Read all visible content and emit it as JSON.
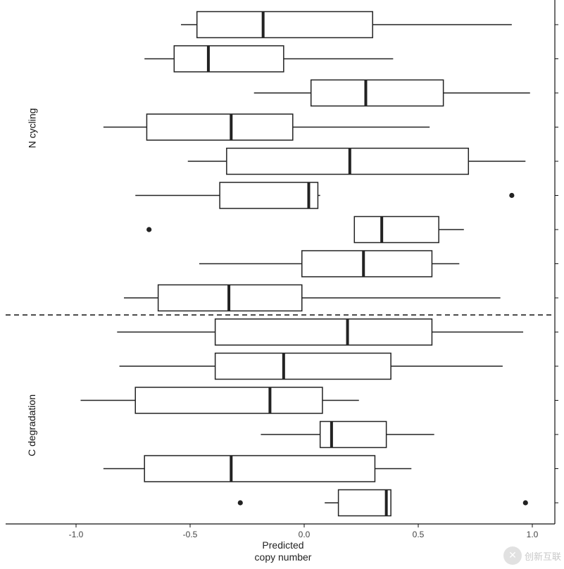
{
  "chart_data": {
    "type": "boxplot",
    "orientation": "horizontal",
    "xlabel_line1": "Predicted",
    "xlabel_line2": "copy number",
    "x_ticks": [
      "-1.0",
      "-0.5",
      "0.0",
      "0.5",
      "1.0"
    ],
    "x_tick_values": [
      -1.0,
      -0.5,
      0.0,
      0.5,
      1.0
    ],
    "xlim": [
      -1.3,
      1.1
    ],
    "group_labels": [
      "N cycling",
      "C degradation"
    ],
    "divider_after_row": 9,
    "grid": false,
    "boxes": [
      {
        "group": "N cycling",
        "whisker_low": -0.54,
        "q1": -0.47,
        "median": -0.18,
        "q3": 0.3,
        "whisker_high": 0.91,
        "outliers": []
      },
      {
        "group": "N cycling",
        "whisker_low": -0.7,
        "q1": -0.57,
        "median": -0.42,
        "q3": -0.09,
        "whisker_high": 0.39,
        "outliers": []
      },
      {
        "group": "N cycling",
        "whisker_low": -0.22,
        "q1": 0.03,
        "median": 0.27,
        "q3": 0.61,
        "whisker_high": 0.99,
        "outliers": []
      },
      {
        "group": "N cycling",
        "whisker_low": -0.88,
        "q1": -0.69,
        "median": -0.32,
        "q3": -0.05,
        "whisker_high": 0.55,
        "outliers": []
      },
      {
        "group": "N cycling",
        "whisker_low": -0.51,
        "q1": -0.34,
        "median": 0.2,
        "q3": 0.72,
        "whisker_high": 0.97,
        "outliers": []
      },
      {
        "group": "N cycling",
        "whisker_low": -0.74,
        "q1": -0.37,
        "median": 0.02,
        "q3": 0.06,
        "whisker_high": 0.07,
        "outliers": [
          0.91
        ]
      },
      {
        "group": "N cycling",
        "whisker_low": 0.22,
        "q1": 0.22,
        "median": 0.34,
        "q3": 0.59,
        "whisker_high": 0.7,
        "outliers": [
          -0.68
        ]
      },
      {
        "group": "N cycling",
        "whisker_low": -0.46,
        "q1": -0.01,
        "median": 0.26,
        "q3": 0.56,
        "whisker_high": 0.68,
        "outliers": []
      },
      {
        "group": "N cycling",
        "whisker_low": -0.79,
        "q1": -0.64,
        "median": -0.33,
        "q3": -0.01,
        "whisker_high": 0.86,
        "outliers": []
      },
      {
        "group": "C degradation",
        "whisker_low": -0.82,
        "q1": -0.39,
        "median": 0.19,
        "q3": 0.56,
        "whisker_high": 0.96,
        "outliers": []
      },
      {
        "group": "C degradation",
        "whisker_low": -0.81,
        "q1": -0.39,
        "median": -0.09,
        "q3": 0.38,
        "whisker_high": 0.87,
        "outliers": []
      },
      {
        "group": "C degradation",
        "whisker_low": -0.98,
        "q1": -0.74,
        "median": -0.15,
        "q3": 0.08,
        "whisker_high": 0.24,
        "outliers": []
      },
      {
        "group": "C degradation",
        "whisker_low": -0.19,
        "q1": 0.07,
        "median": 0.12,
        "q3": 0.36,
        "whisker_high": 0.57,
        "outliers": []
      },
      {
        "group": "C degradation",
        "whisker_low": -0.88,
        "q1": -0.7,
        "median": -0.32,
        "q3": 0.31,
        "whisker_high": 0.47,
        "outliers": []
      },
      {
        "group": "C degradation",
        "whisker_low": 0.09,
        "q1": 0.15,
        "median": 0.36,
        "q3": 0.38,
        "whisker_high": 0.38,
        "outliers": [
          -0.28,
          0.97
        ]
      }
    ]
  },
  "watermark": {
    "glyph": "✕",
    "text": "创新互联"
  }
}
